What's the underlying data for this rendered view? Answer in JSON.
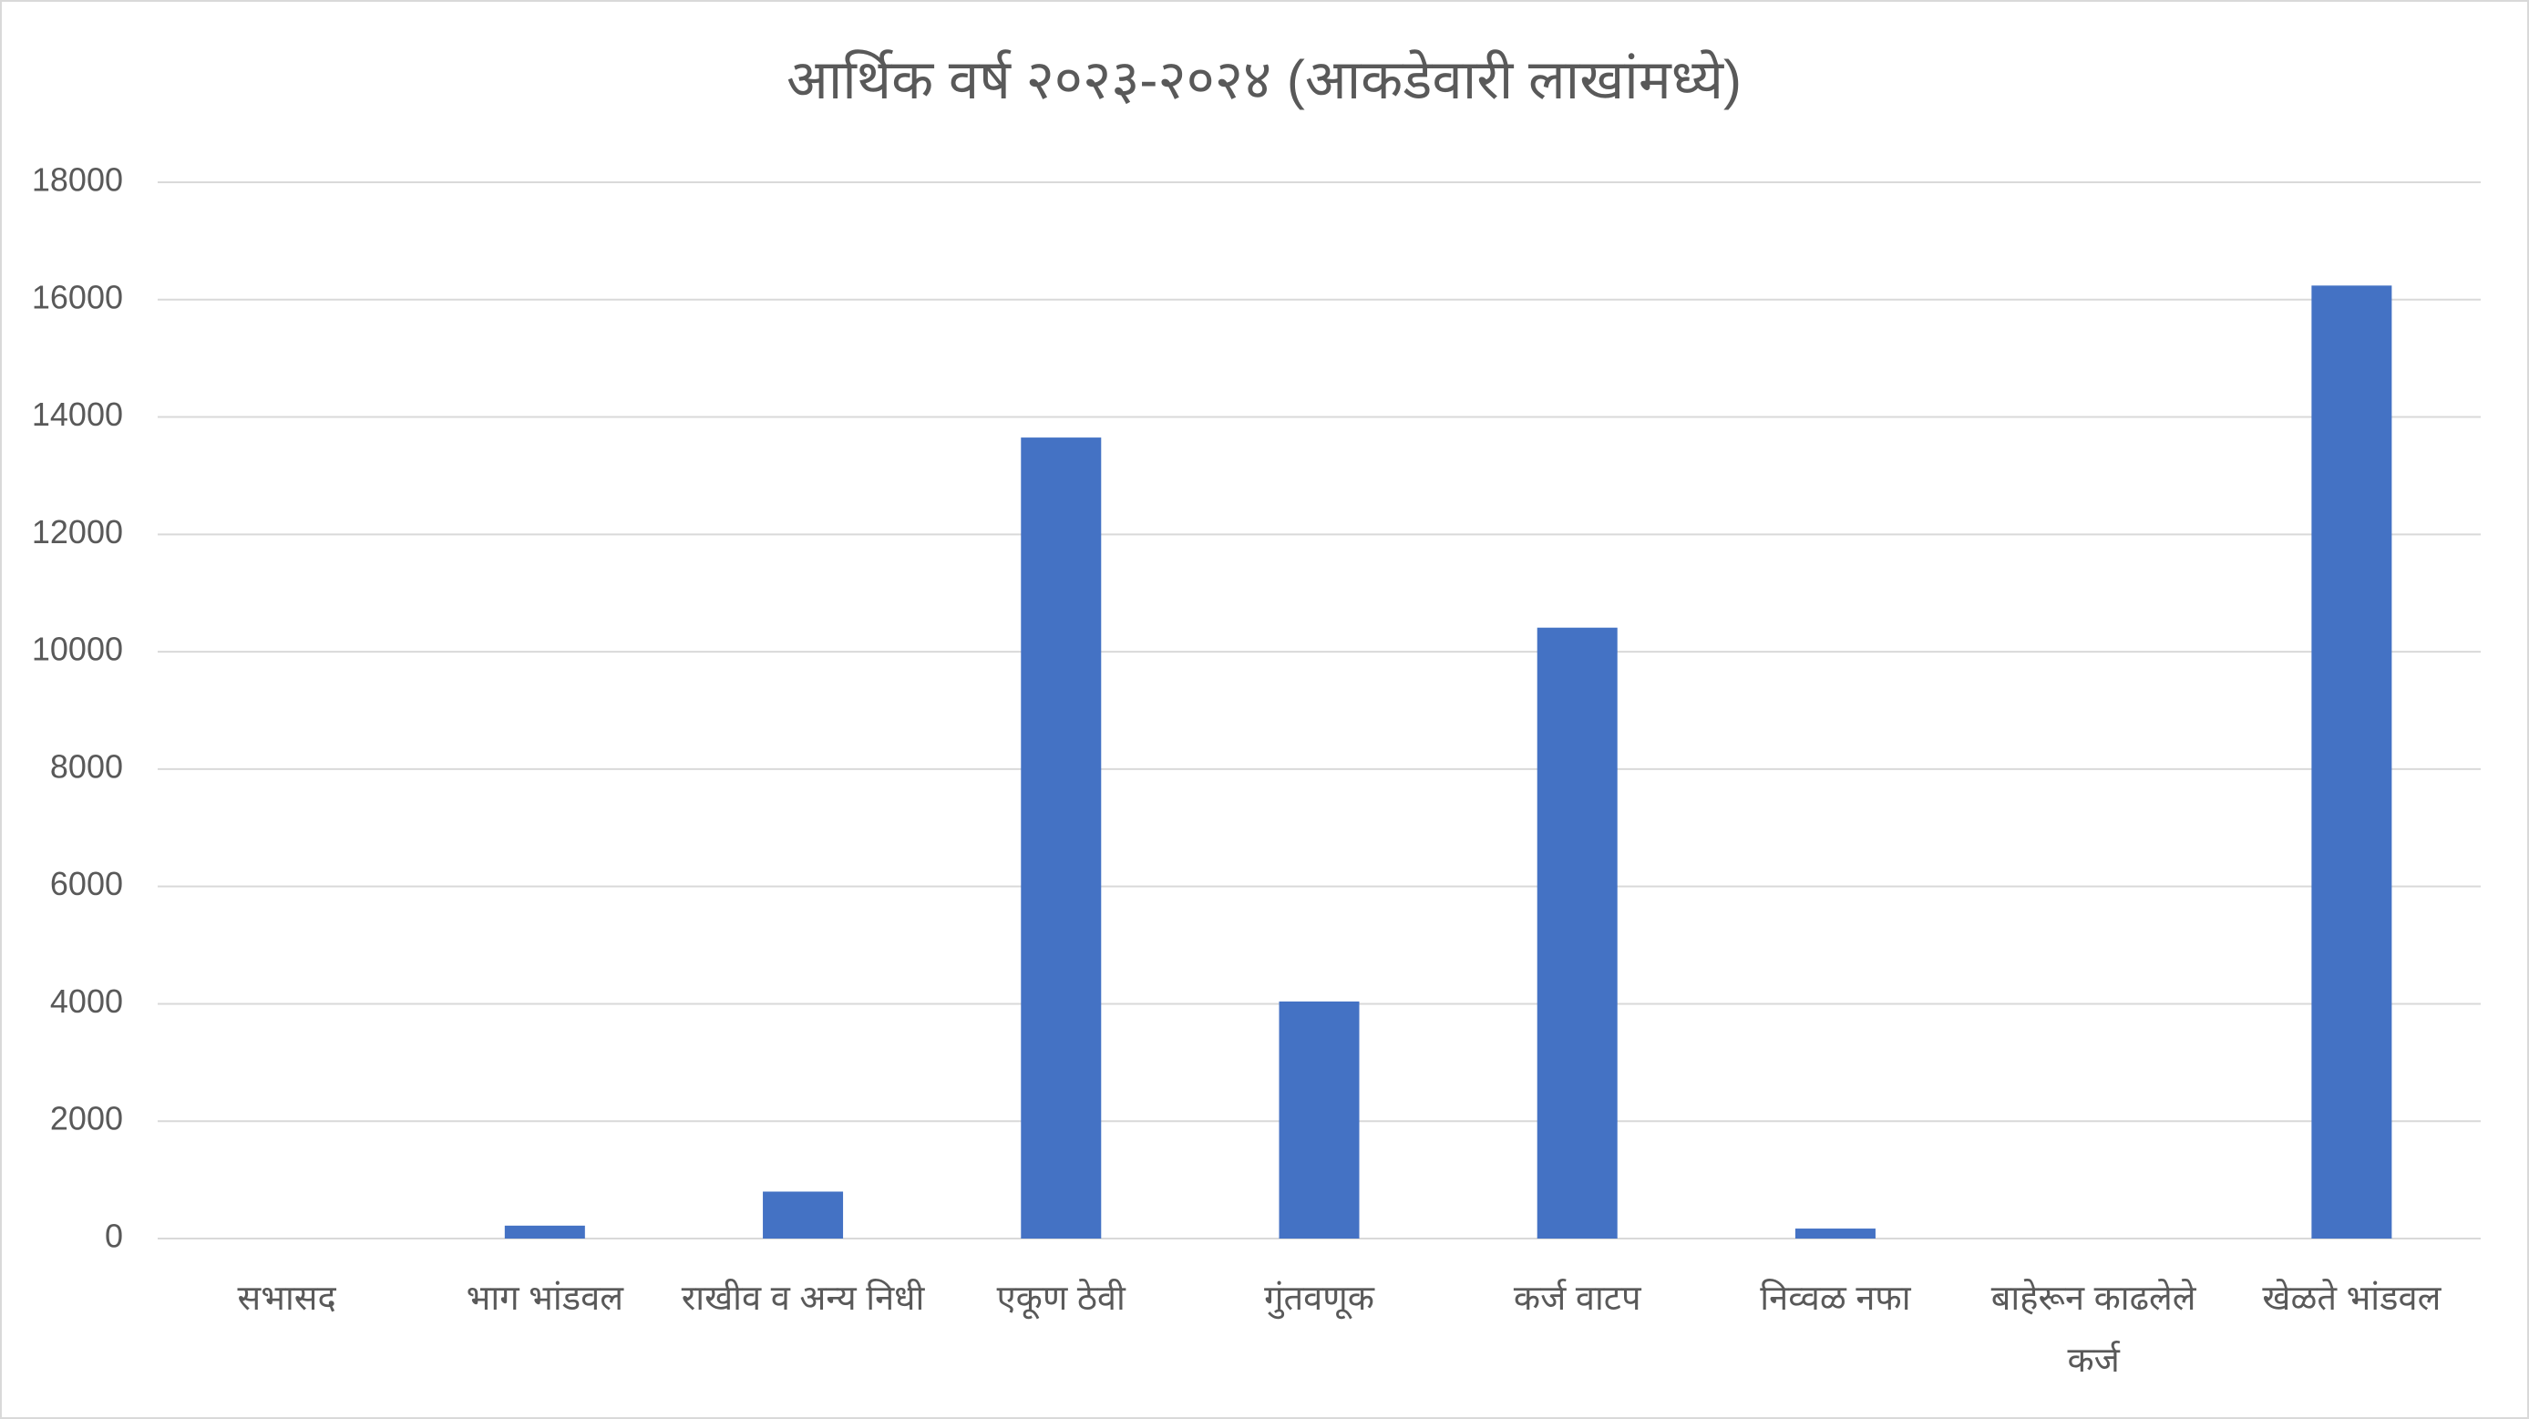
{
  "chart_data": {
    "type": "bar",
    "title": "आर्थिक वर्ष २०२३-२०२४ (आकडेवारी लाखांमध्ये)",
    "categories": [
      "सभासद",
      "भाग भांडवल",
      "राखीव व अन्य निधी",
      "एकूण ठेवी",
      "गुंतवणूक",
      "कर्ज वाटप",
      "निव्वळ नफा",
      "बाहेरून काढलेले कर्ज",
      "खेळते भांडवल"
    ],
    "values": [
      0,
      220,
      800,
      13650,
      4040,
      10410,
      170,
      0,
      16240
    ],
    "color": "#4472c4",
    "ylim": [
      0,
      18000
    ],
    "yticks": [
      0,
      2000,
      4000,
      6000,
      8000,
      10000,
      12000,
      14000,
      16000,
      18000
    ],
    "grid": true
  }
}
